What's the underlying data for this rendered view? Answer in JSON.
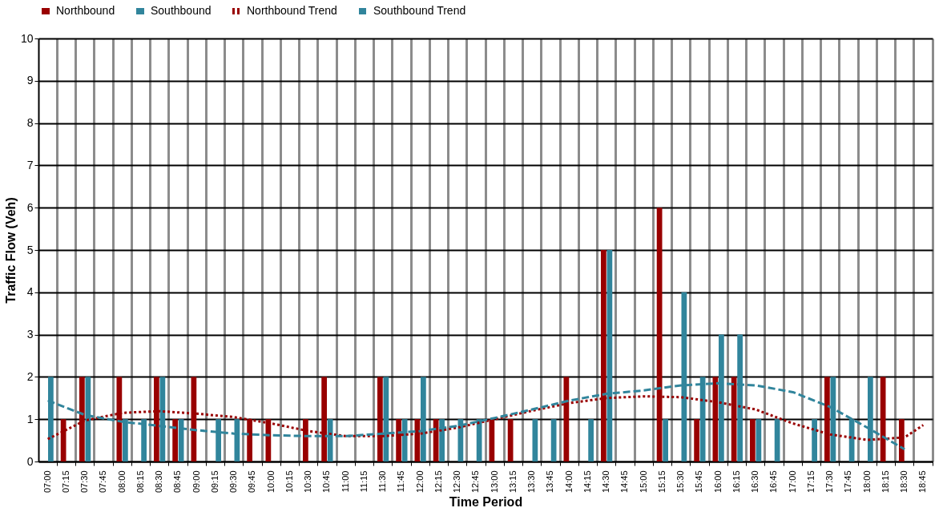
{
  "chart_data": {
    "type": "bar",
    "xlabel": "Time Period",
    "ylabel": "Traffic Flow (Veh)",
    "categories": [
      "07:00",
      "07:15",
      "07:30",
      "07:45",
      "08:00",
      "08:15",
      "08:30",
      "08:45",
      "09:00",
      "09:15",
      "09:30",
      "09:45",
      "10:00",
      "10:15",
      "10:30",
      "10:45",
      "11:00",
      "11:15",
      "11:30",
      "11:45",
      "12:00",
      "12:15",
      "12:30",
      "12:45",
      "13:00",
      "13:15",
      "13:30",
      "13:45",
      "14:00",
      "14:15",
      "14:30",
      "14:45",
      "15:00",
      "15:15",
      "15:30",
      "15:45",
      "16:00",
      "16:15",
      "16:30",
      "16:45",
      "17:00",
      "17:15",
      "17:30",
      "17:45",
      "18:00",
      "18:15",
      "18:30",
      "18:45"
    ],
    "series": [
      {
        "name": "Northbound",
        "color": "#990000",
        "values": [
          0,
          1,
          2,
          0,
          2,
          0,
          2,
          1,
          2,
          0,
          0,
          1,
          1,
          0,
          1,
          2,
          0,
          0,
          2,
          1,
          1,
          1,
          0,
          0,
          1,
          1,
          0,
          0,
          2,
          0,
          5,
          0,
          0,
          6,
          0,
          1,
          2,
          2,
          1,
          0,
          0,
          0,
          2,
          0,
          0,
          2,
          1,
          0
        ]
      },
      {
        "name": "Southbound",
        "color": "#31859c",
        "values": [
          2,
          0,
          2,
          0,
          1,
          1,
          2,
          1,
          0,
          1,
          1,
          0,
          0,
          0,
          0,
          1,
          0,
          0,
          2,
          1,
          2,
          1,
          1,
          1,
          0,
          0,
          1,
          1,
          0,
          1,
          5,
          0,
          0,
          1,
          4,
          2,
          3,
          3,
          1,
          1,
          0,
          1,
          2,
          1,
          2,
          0,
          0,
          0
        ]
      },
      {
        "name": "Northbound Trend",
        "type": "line",
        "line_style": "dotted",
        "color": "#990000",
        "x": [
          "07:00",
          "07:30",
          "08:00",
          "08:30",
          "09:00",
          "09:30",
          "10:00",
          "10:30",
          "11:00",
          "11:30",
          "12:00",
          "12:30",
          "13:00",
          "13:30",
          "14:00",
          "14:30",
          "15:00",
          "15:30",
          "16:00",
          "16:30",
          "17:00",
          "17:30",
          "18:00",
          "18:30",
          "18:45"
        ],
        "values": [
          0.53,
          0.97,
          1.15,
          1.19,
          1.13,
          1.05,
          0.9,
          0.72,
          0.6,
          0.6,
          0.66,
          0.8,
          1.0,
          1.2,
          1.38,
          1.5,
          1.54,
          1.52,
          1.4,
          1.23,
          0.9,
          0.64,
          0.51,
          0.57,
          0.86
        ]
      },
      {
        "name": "Southbound Trend",
        "type": "line",
        "line_style": "dashed",
        "color": "#31859c",
        "x": [
          "07:00",
          "07:30",
          "08:00",
          "08:30",
          "09:00",
          "09:30",
          "10:00",
          "10:30",
          "11:00",
          "11:30",
          "12:00",
          "12:30",
          "13:00",
          "13:30",
          "14:00",
          "14:30",
          "15:00",
          "15:30",
          "16:00",
          "16:30",
          "17:00",
          "17:30",
          "18:00",
          "18:30"
        ],
        "values": [
          1.44,
          1.1,
          0.94,
          0.84,
          0.74,
          0.66,
          0.62,
          0.6,
          0.6,
          0.66,
          0.72,
          0.84,
          1.03,
          1.23,
          1.44,
          1.6,
          1.68,
          1.8,
          1.85,
          1.8,
          1.64,
          1.29,
          0.8,
          0.29
        ]
      }
    ],
    "ylim": [
      0,
      10
    ],
    "yticks": [
      0,
      1,
      2,
      3,
      4,
      5,
      6,
      7,
      8,
      9,
      10
    ],
    "grid": true,
    "legend": "top"
  }
}
